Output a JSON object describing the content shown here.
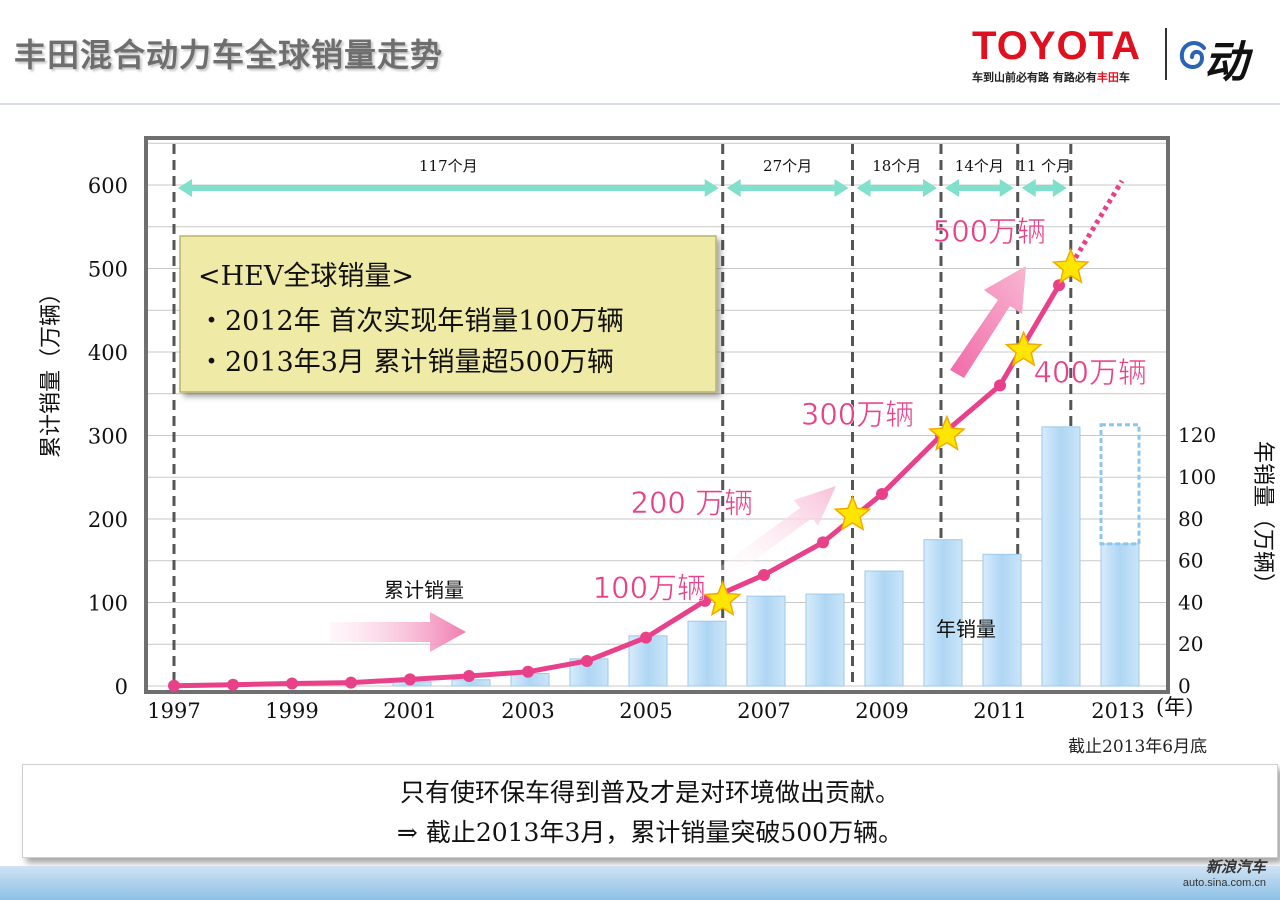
{
  "header": {
    "title": "丰田混合动力车全球销量走势",
    "logo_text": "TOYOTA",
    "logo_tagline_a": "车到山前必有路  有路必有",
    "logo_tagline_b": "丰田",
    "logo_tagline_c": "车",
    "logo_mark_text": "动"
  },
  "chart_data": {
    "type": "bar+line",
    "x_tick_labels": [
      "1997",
      "1999",
      "2001",
      "2003",
      "2005",
      "2007",
      "2009",
      "2011",
      "2013"
    ],
    "x_unit": "(年)",
    "y_left_label": "累计销量（万辆）",
    "y_left_ticks": [
      0,
      100,
      200,
      300,
      400,
      500,
      600
    ],
    "y_left_range": [
      0,
      600
    ],
    "y_right_label": "年销量（万辆）",
    "y_right_ticks": [
      0,
      20,
      40,
      60,
      80,
      100,
      120
    ],
    "y_right_range": [
      0,
      160
    ],
    "cumulative_series": {
      "name": "累计销量",
      "color": "#e8418a",
      "x": [
        1997,
        1998,
        1999,
        2000,
        2001,
        2002,
        2003,
        2004,
        2005,
        2006,
        2007,
        2008,
        2009,
        2010,
        2011,
        2012
      ],
      "values": [
        0.3,
        1.5,
        3,
        4,
        8,
        12,
        17,
        30,
        58,
        102,
        133,
        172,
        230,
        300,
        360,
        480
      ]
    },
    "projection": {
      "from_year": 2012,
      "from_value": 480,
      "to_year": 2013,
      "to_value": 605,
      "color": "#e8418a"
    },
    "annual_series": {
      "name": "年销量",
      "color": "#b9dcf5",
      "x": [
        2001,
        2002,
        2003,
        2004,
        2005,
        2006,
        2007,
        2008,
        2009,
        2010,
        2011,
        2012,
        2013
      ],
      "values": [
        2,
        3,
        6,
        13,
        24,
        31,
        43,
        44,
        55,
        70,
        63,
        124,
        68
      ],
      "projected_total_2013": {
        "year": 2013,
        "value": 125
      }
    },
    "milestones": [
      {
        "label": "100万辆",
        "year": 2006.3,
        "value": 103
      },
      {
        "label": "200 万辆",
        "year": 2008.5,
        "value": 205
      },
      {
        "label": "300万辆",
        "year": 2010.1,
        "value": 301
      },
      {
        "label": "400万辆",
        "year": 2011.4,
        "value": 402
      },
      {
        "label": "500万辆",
        "year": 2012.2,
        "value": 501
      }
    ],
    "period_labels": [
      {
        "label": "117个月",
        "from": 1997.0,
        "to": 2006.3
      },
      {
        "label": "27个月",
        "from": 2006.3,
        "to": 2008.5
      },
      {
        "label": "18个月",
        "from": 2008.5,
        "to": 2010.0
      },
      {
        "label": "14个月",
        "from": 2010.0,
        "to": 2011.3
      },
      {
        "label": "11 个月",
        "from": 2011.3,
        "to": 2012.2
      }
    ],
    "series_label_cumulative": "累计销量",
    "series_label_annual": "年销量",
    "note": "截止2013年6月底"
  },
  "info_box": {
    "title": "<HEV全球销量>",
    "line1": "・2012年  首次实现年销量100万辆",
    "line2": "・2013年3月  累计销量超500万辆"
  },
  "bottom": {
    "line1": "只有使环保车得到普及才是对环境做出贡献。",
    "line2": "⇒  截止2013年3月，累计销量突破500万辆。"
  },
  "watermark": {
    "name": "新浪汽车",
    "url": "auto.sina.com.cn"
  }
}
